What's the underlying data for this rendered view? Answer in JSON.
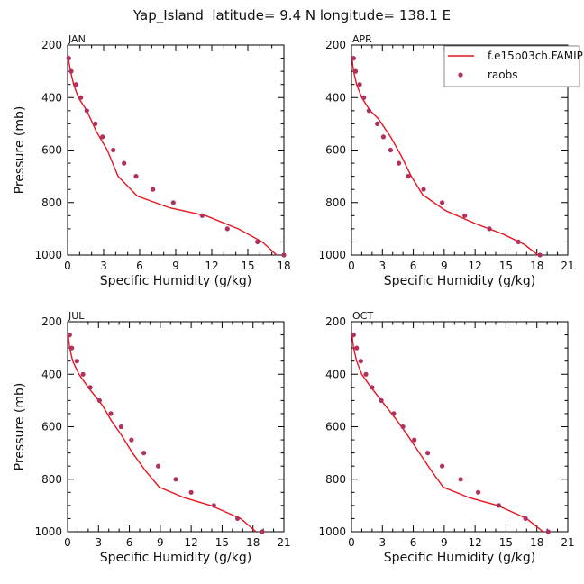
{
  "title": "Yap_Island  latitude= 9.4 N longitude= 138.1 E",
  "colors": {
    "model": "#e8141e",
    "obs": "#b03060",
    "axis": "#000000"
  },
  "legend": {
    "model_label": "f.e15b03ch.FAMIP",
    "obs_label": "raobs",
    "placement": "top-right of APR panel"
  },
  "chart_data": [
    {
      "type": "line",
      "panel": "JAN",
      "xlabel": "Specific Humidity (g/kg)",
      "ylabel": "Pressure (mb)",
      "xlim": [
        0,
        18
      ],
      "ylim": [
        1000,
        200
      ],
      "xticks": [
        0,
        3,
        6,
        9,
        12,
        15,
        18
      ],
      "yticks": [
        200,
        400,
        600,
        800,
        1000
      ],
      "series": [
        {
          "name": "f.e15b03ch.FAMIP",
          "kind": "line",
          "x": [
            17.4,
            16.2,
            14.2,
            11.5,
            8.5,
            5.8,
            4.2,
            3.3,
            2.4,
            1.6,
            0.9,
            0.5,
            0.25,
            0.1,
            0.05
          ],
          "y": [
            1000,
            950,
            900,
            850,
            820,
            775,
            700,
            600,
            530,
            450,
            400,
            350,
            300,
            260,
            240
          ]
        },
        {
          "name": "raobs",
          "kind": "points",
          "x": [
            18.0,
            15.8,
            13.3,
            11.2,
            8.8,
            7.1,
            5.7,
            4.7,
            3.8,
            2.9,
            2.3,
            1.6,
            1.1,
            0.7,
            0.3,
            0.1
          ],
          "y": [
            1000,
            950,
            900,
            850,
            800,
            750,
            700,
            650,
            600,
            550,
            500,
            450,
            400,
            350,
            300,
            250
          ]
        }
      ]
    },
    {
      "type": "line",
      "panel": "APR",
      "xlabel": "Specific Humidity (g/kg)",
      "ylabel": "",
      "xlim": [
        0,
        21
      ],
      "ylim": [
        1000,
        200
      ],
      "xticks": [
        0,
        3,
        6,
        9,
        12,
        15,
        18,
        21
      ],
      "yticks": [
        200,
        400,
        600,
        800,
        1000
      ],
      "series": [
        {
          "name": "f.e15b03ch.FAMIP",
          "kind": "line",
          "x": [
            18.1,
            16.8,
            14.7,
            12.0,
            9.1,
            6.9,
            5.8,
            4.8,
            3.8,
            2.6,
            1.8,
            1.0,
            0.5,
            0.2,
            0.05
          ],
          "y": [
            1000,
            960,
            920,
            880,
            830,
            770,
            700,
            620,
            550,
            480,
            450,
            400,
            350,
            300,
            250
          ]
        },
        {
          "name": "raobs",
          "kind": "points",
          "x": [
            18.3,
            16.2,
            13.4,
            11.0,
            8.8,
            7.0,
            5.5,
            4.6,
            3.8,
            3.1,
            2.5,
            1.7,
            1.2,
            0.8,
            0.4,
            0.2
          ],
          "y": [
            1000,
            950,
            900,
            850,
            800,
            750,
            700,
            650,
            600,
            550,
            500,
            450,
            400,
            350,
            300,
            250
          ]
        }
      ]
    },
    {
      "type": "line",
      "panel": "JUL",
      "xlabel": "Specific Humidity (g/kg)",
      "ylabel": "Pressure (mb)",
      "xlim": [
        0,
        21
      ],
      "ylim": [
        1000,
        200
      ],
      "xticks": [
        0,
        3,
        6,
        9,
        12,
        15,
        18,
        21
      ],
      "yticks": [
        200,
        400,
        600,
        800,
        1000
      ],
      "series": [
        {
          "name": "f.e15b03ch.FAMIP",
          "kind": "line",
          "x": [
            18.3,
            16.8,
            13.9,
            11.3,
            8.9,
            7.6,
            6.3,
            5.2,
            4.3,
            3.4,
            2.0,
            1.1,
            0.5,
            0.2,
            0.05
          ],
          "y": [
            1000,
            950,
            900,
            870,
            830,
            770,
            700,
            630,
            580,
            520,
            450,
            400,
            350,
            300,
            250
          ]
        },
        {
          "name": "raobs",
          "kind": "points",
          "x": [
            18.9,
            16.5,
            14.2,
            12.0,
            10.5,
            8.8,
            7.4,
            6.2,
            5.2,
            4.2,
            3.1,
            2.2,
            1.5,
            0.9,
            0.4,
            0.2
          ],
          "y": [
            1000,
            950,
            900,
            850,
            800,
            750,
            700,
            650,
            600,
            550,
            500,
            450,
            400,
            350,
            300,
            250
          ]
        }
      ]
    },
    {
      "type": "line",
      "panel": "OCT",
      "xlabel": "Specific Humidity (g/kg)",
      "ylabel": "",
      "xlim": [
        0,
        21
      ],
      "ylim": [
        1000,
        200
      ],
      "xticks": [
        0,
        3,
        6,
        9,
        12,
        15,
        18,
        21
      ],
      "yticks": [
        200,
        400,
        600,
        800,
        1000
      ],
      "series": [
        {
          "name": "f.e15b03ch.FAMIP",
          "kind": "line",
          "x": [
            18.6,
            17.0,
            14.2,
            11.4,
            8.9,
            7.8,
            6.6,
            5.4,
            4.3,
            3.1,
            1.9,
            1.0,
            0.5,
            0.2,
            0.05
          ],
          "y": [
            1000,
            950,
            900,
            870,
            830,
            770,
            700,
            630,
            570,
            510,
            450,
            400,
            350,
            300,
            250
          ]
        },
        {
          "name": "raobs",
          "kind": "points",
          "x": [
            19.1,
            16.9,
            14.3,
            12.3,
            10.6,
            8.8,
            7.4,
            6.1,
            5.0,
            4.1,
            2.9,
            2.0,
            1.4,
            0.9,
            0.5,
            0.2
          ],
          "y": [
            1000,
            950,
            900,
            850,
            800,
            750,
            700,
            650,
            600,
            550,
            500,
            450,
            400,
            350,
            300,
            250
          ]
        }
      ]
    }
  ]
}
